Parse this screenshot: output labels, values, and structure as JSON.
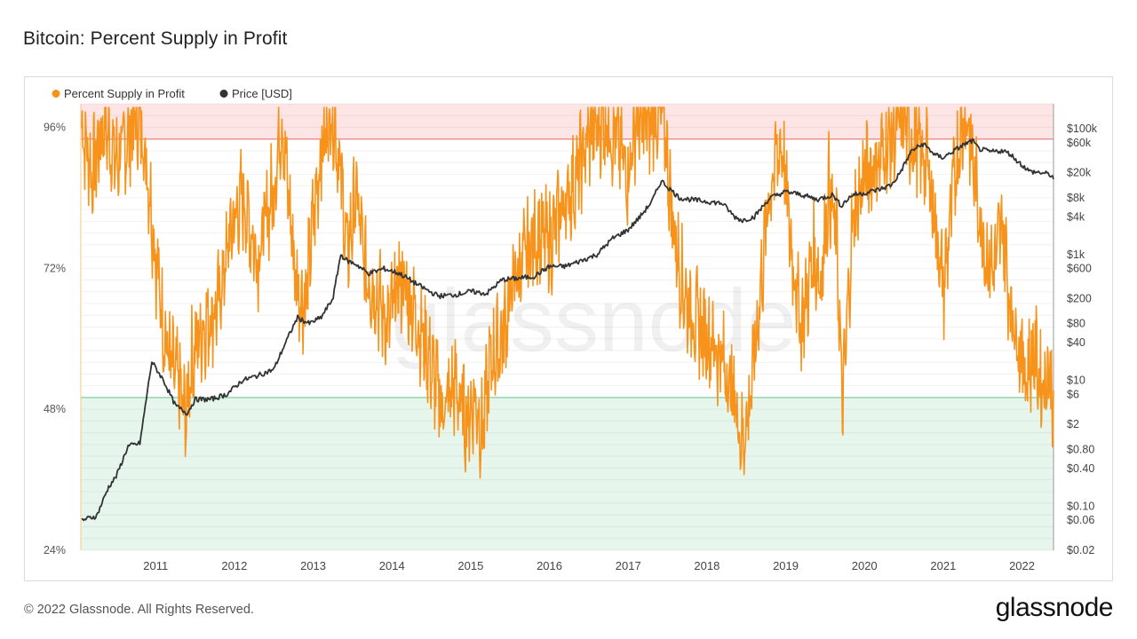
{
  "title": "Bitcoin: Percent Supply in Profit",
  "footer": {
    "copyright": "© 2022 Glassnode. All Rights Reserved.",
    "logo": "glassnode"
  },
  "watermark": "glassnode",
  "colors": {
    "profit": "#f7931a",
    "price": "#333333",
    "top_band": "#fde5e5",
    "top_line": "#e88c8c",
    "bottom_band": "#e6f6ec",
    "bottom_line": "#8fd0a4"
  },
  "chart_data": {
    "type": "line",
    "title": "Bitcoin: Percent Supply in Profit",
    "legend": {
      "position": "top-left",
      "items": [
        "Percent Supply in Profit",
        "Price [USD]"
      ]
    },
    "x_range": [
      2010.55,
      2022.9
    ],
    "x_ticks": [
      "2011",
      "2012",
      "2013",
      "2014",
      "2015",
      "2016",
      "2017",
      "2018",
      "2019",
      "2020",
      "2021",
      "2022"
    ],
    "y_left": {
      "range": [
        24,
        100
      ],
      "ticks": [
        "96%",
        "72%",
        "48%",
        "24%"
      ]
    },
    "y_right": {
      "scale": "log",
      "range": [
        0.02,
        250000
      ],
      "ticks": [
        "$100k",
        "$60k",
        "$20k",
        "$8k",
        "$4k",
        "$1k",
        "$600",
        "$200",
        "$80",
        "$40",
        "$10",
        "$6",
        "$2",
        "$0.80",
        "$0.40",
        "$0.10",
        "$0.06",
        "$0.02"
      ]
    },
    "bands": [
      {
        "from": 94,
        "to": 100,
        "color": "red",
        "threshold_line": 94
      },
      {
        "from": 24,
        "to": 50,
        "color": "green",
        "threshold_line": 50
      }
    ],
    "grid": true,
    "series": [
      {
        "name": "Percent Supply in Profit",
        "axis": "left",
        "style": "volatile",
        "x": [
          2010.56,
          2010.7,
          2010.85,
          2011.0,
          2011.15,
          2011.3,
          2011.42,
          2011.5,
          2011.6,
          2011.7,
          2011.8,
          2011.88,
          2011.95,
          2012.1,
          2012.3,
          2012.45,
          2012.6,
          2012.8,
          2013.0,
          2013.1,
          2013.2,
          2013.28,
          2013.4,
          2013.5,
          2013.6,
          2013.75,
          2013.85,
          2013.93,
          2014.05,
          2014.15,
          2014.3,
          2014.45,
          2014.6,
          2014.75,
          2014.9,
          2015.0,
          2015.15,
          2015.3,
          2015.45,
          2015.55,
          2015.65,
          2015.75,
          2015.9,
          2016.05,
          2016.2,
          2016.35,
          2016.5,
          2016.65,
          2016.8,
          2016.95,
          2017.05,
          2017.2,
          2017.35,
          2017.5,
          2017.6,
          2017.75,
          2017.85,
          2017.95,
          2018.05,
          2018.15,
          2018.25,
          2018.4,
          2018.55,
          2018.7,
          2018.85,
          2018.95,
          2019.05,
          2019.15,
          2019.3,
          2019.45,
          2019.55,
          2019.7,
          2019.85,
          2019.95,
          2020.05,
          2020.15,
          2020.22,
          2020.35,
          2020.5,
          2020.65,
          2020.8,
          2020.9,
          2021.0,
          2021.1,
          2021.2,
          2021.3,
          2021.4,
          2021.5,
          2021.6,
          2021.7,
          2021.8,
          2021.88,
          2021.95,
          2022.05,
          2022.15,
          2022.25,
          2022.35,
          2022.45,
          2022.55,
          2022.65,
          2022.75,
          2022.85,
          2022.9
        ],
        "values": [
          96,
          88,
          97,
          90,
          94,
          98,
          86,
          74,
          62,
          55,
          52,
          46,
          56,
          62,
          66,
          78,
          84,
          74,
          86,
          98,
          82,
          70,
          66,
          80,
          92,
          99,
          88,
          74,
          85,
          72,
          68,
          62,
          70,
          66,
          60,
          55,
          48,
          52,
          46,
          50,
          44,
          56,
          60,
          70,
          74,
          78,
          76,
          82,
          86,
          92,
          96,
          97,
          94,
          88,
          97,
          96,
          99,
          98,
          82,
          72,
          66,
          62,
          60,
          56,
          50,
          42,
          50,
          64,
          86,
          94,
          78,
          62,
          74,
          70,
          86,
          76,
          48,
          80,
          88,
          90,
          93,
          95,
          98,
          94,
          92,
          90,
          80,
          68,
          82,
          94,
          98,
          90,
          82,
          74,
          72,
          80,
          66,
          60,
          54,
          58,
          52,
          55,
          47
        ]
      },
      {
        "name": "Price [USD]",
        "axis": "right",
        "style": "smooth",
        "x": [
          2010.56,
          2010.75,
          2010.9,
          2011.0,
          2011.15,
          2011.3,
          2011.45,
          2011.6,
          2011.75,
          2011.9,
          2012.0,
          2012.2,
          2012.4,
          2012.6,
          2012.8,
          2013.0,
          2013.15,
          2013.3,
          2013.45,
          2013.6,
          2013.75,
          2013.85,
          2013.93,
          2014.05,
          2014.2,
          2014.4,
          2014.6,
          2014.8,
          2015.0,
          2015.1,
          2015.3,
          2015.5,
          2015.7,
          2015.9,
          2016.1,
          2016.3,
          2016.5,
          2016.7,
          2016.9,
          2017.1,
          2017.3,
          2017.5,
          2017.65,
          2017.8,
          2017.92,
          2018.0,
          2018.15,
          2018.3,
          2018.5,
          2018.7,
          2018.85,
          2018.95,
          2019.1,
          2019.3,
          2019.5,
          2019.7,
          2019.9,
          2020.1,
          2020.2,
          2020.35,
          2020.5,
          2020.7,
          2020.85,
          2020.95,
          2021.1,
          2021.25,
          2021.4,
          2021.5,
          2021.6,
          2021.75,
          2021.87,
          2021.95,
          2022.1,
          2022.25,
          2022.35,
          2022.45,
          2022.6,
          2022.75,
          2022.85,
          2022.9
        ],
        "values": [
          0.06,
          0.07,
          0.2,
          0.3,
          0.9,
          1.0,
          20,
          10,
          4,
          3,
          5,
          5,
          6,
          10,
          12,
          15,
          40,
          100,
          80,
          100,
          200,
          1000,
          800,
          700,
          500,
          600,
          500,
          350,
          250,
          220,
          230,
          260,
          240,
          400,
          420,
          450,
          650,
          650,
          800,
          1000,
          1800,
          2500,
          4000,
          7000,
          15000,
          12000,
          8000,
          7500,
          7000,
          6500,
          4000,
          3500,
          4000,
          8000,
          10000,
          9000,
          7500,
          9000,
          6000,
          9000,
          9500,
          11000,
          13000,
          20000,
          45000,
          58000,
          38000,
          35000,
          42000,
          55000,
          65000,
          48000,
          43000,
          45000,
          40000,
          30000,
          21000,
          20000,
          19000,
          16500
        ]
      }
    ]
  }
}
